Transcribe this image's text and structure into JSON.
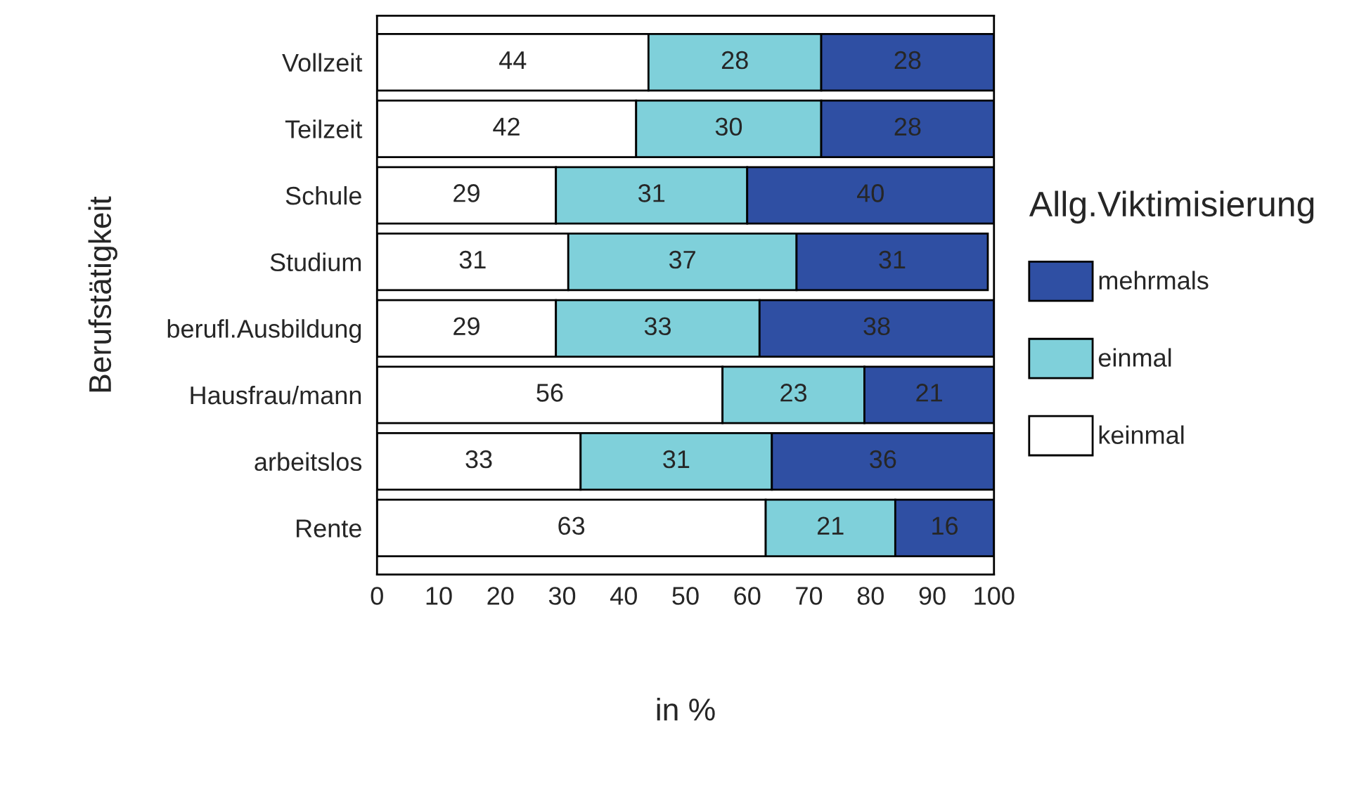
{
  "chart_data": {
    "type": "bar",
    "orientation": "horizontal",
    "stacked": true,
    "xlabel": "in %",
    "ylabel": "Berufstätigkeit",
    "legend_title": "Allg.Viktimisierung",
    "legend": "right",
    "data_labels": true,
    "grid": false,
    "categories": [
      "Vollzeit",
      "Teilzeit",
      "Schule",
      "Studium",
      "berufl.Ausbildung",
      "Hausfrau/mann",
      "arbeitslos",
      "Rente"
    ],
    "xlim": [
      0,
      100
    ],
    "xticks": [
      0,
      10,
      20,
      30,
      40,
      50,
      60,
      70,
      80,
      90,
      100
    ],
    "series": [
      {
        "name": "keinmal",
        "color": "#ffffff",
        "values": [
          44,
          42,
          29,
          31,
          29,
          56,
          33,
          63
        ]
      },
      {
        "name": "einmal",
        "color": "#7fd0da",
        "values": [
          28,
          30,
          31,
          37,
          33,
          23,
          31,
          21
        ]
      },
      {
        "name": "mehrmals",
        "color": "#2f4fa3",
        "values": [
          28,
          28,
          40,
          31,
          38,
          21,
          36,
          16
        ]
      }
    ]
  }
}
